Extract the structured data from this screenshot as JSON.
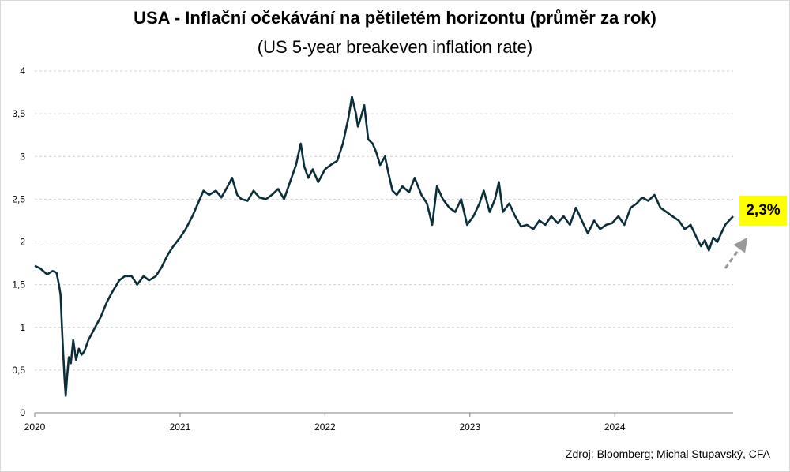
{
  "chart_data": {
    "type": "line",
    "title": "USA - Inflační očekávání na pětiletém horizontu (průměr za rok)",
    "subtitle": "(US 5-year breakeven inflation rate)",
    "xlabel": "",
    "ylabel": "",
    "x_ticks": [
      "2020",
      "2021",
      "2022",
      "2023",
      "2024"
    ],
    "y_ticks": [
      "0",
      "0,5",
      "1",
      "1,5",
      "2",
      "2,5",
      "3",
      "3,5",
      "4"
    ],
    "xlim": [
      "2020-01-01",
      "2024-10-25"
    ],
    "ylim": [
      0,
      4
    ],
    "grid": true,
    "line_color": "#0b2f3a",
    "series": [
      {
        "x": [
          "2020-01-01",
          "2020-01-15",
          "2020-02-01",
          "2020-02-15",
          "2020-02-25",
          "2020-03-01",
          "2020-03-06",
          "2020-03-09",
          "2020-03-12",
          "2020-03-16",
          "2020-03-19",
          "2020-03-23",
          "2020-03-27",
          "2020-04-01",
          "2020-04-07",
          "2020-04-14",
          "2020-04-21",
          "2020-04-28",
          "2020-05-05",
          "2020-05-15",
          "2020-06-01",
          "2020-06-15",
          "2020-07-01",
          "2020-07-15",
          "2020-08-01",
          "2020-08-15",
          "2020-09-01",
          "2020-09-15",
          "2020-10-01",
          "2020-10-15",
          "2020-11-01",
          "2020-11-15",
          "2020-12-01",
          "2020-12-15",
          "2021-01-01",
          "2021-01-15",
          "2021-02-01",
          "2021-02-15",
          "2021-03-01",
          "2021-03-15",
          "2021-04-01",
          "2021-04-15",
          "2021-05-01",
          "2021-05-12",
          "2021-05-25",
          "2021-06-05",
          "2021-06-20",
          "2021-07-05",
          "2021-07-20",
          "2021-08-05",
          "2021-08-20",
          "2021-09-05",
          "2021-09-20",
          "2021-10-05",
          "2021-10-20",
          "2021-11-01",
          "2021-11-10",
          "2021-11-20",
          "2021-12-01",
          "2021-12-15",
          "2022-01-01",
          "2022-01-15",
          "2022-02-01",
          "2022-02-15",
          "2022-03-01",
          "2022-03-10",
          "2022-03-20",
          "2022-03-25",
          "2022-04-01",
          "2022-04-10",
          "2022-04-20",
          "2022-05-01",
          "2022-05-10",
          "2022-05-20",
          "2022-06-01",
          "2022-06-10",
          "2022-06-20",
          "2022-07-01",
          "2022-07-15",
          "2022-08-01",
          "2022-08-15",
          "2022-09-01",
          "2022-09-15",
          "2022-09-28",
          "2022-10-10",
          "2022-10-25",
          "2022-11-10",
          "2022-11-25",
          "2022-12-10",
          "2022-12-25",
          "2023-01-10",
          "2023-01-25",
          "2023-02-05",
          "2023-02-20",
          "2023-03-05",
          "2023-03-15",
          "2023-03-25",
          "2023-04-10",
          "2023-04-25",
          "2023-05-10",
          "2023-05-25",
          "2023-06-10",
          "2023-06-25",
          "2023-07-10",
          "2023-07-25",
          "2023-08-10",
          "2023-08-25",
          "2023-09-10",
          "2023-09-25",
          "2023-10-10",
          "2023-10-25",
          "2023-11-10",
          "2023-11-25",
          "2023-12-10",
          "2023-12-25",
          "2024-01-10",
          "2024-01-25",
          "2024-02-10",
          "2024-02-25",
          "2024-03-10",
          "2024-03-25",
          "2024-04-10",
          "2024-04-25",
          "2024-05-10",
          "2024-05-25",
          "2024-06-10",
          "2024-06-25",
          "2024-07-10",
          "2024-07-25",
          "2024-08-05",
          "2024-08-15",
          "2024-08-25",
          "2024-09-05",
          "2024-09-15",
          "2024-09-25",
          "2024-10-05",
          "2024-10-15",
          "2024-10-25"
        ],
        "y": [
          1.72,
          1.69,
          1.62,
          1.66,
          1.64,
          1.52,
          1.38,
          1.05,
          0.75,
          0.4,
          0.2,
          0.45,
          0.65,
          0.58,
          0.85,
          0.62,
          0.75,
          0.68,
          0.72,
          0.85,
          1.0,
          1.12,
          1.3,
          1.42,
          1.55,
          1.6,
          1.6,
          1.5,
          1.6,
          1.55,
          1.6,
          1.7,
          1.85,
          1.95,
          2.05,
          2.15,
          2.3,
          2.45,
          2.6,
          2.55,
          2.6,
          2.52,
          2.65,
          2.75,
          2.55,
          2.5,
          2.48,
          2.6,
          2.52,
          2.5,
          2.55,
          2.62,
          2.5,
          2.7,
          2.9,
          3.15,
          2.88,
          2.75,
          2.85,
          2.7,
          2.85,
          2.9,
          2.95,
          3.15,
          3.45,
          3.7,
          3.5,
          3.35,
          3.45,
          3.6,
          3.2,
          3.15,
          3.05,
          2.9,
          3.0,
          2.8,
          2.6,
          2.55,
          2.65,
          2.58,
          2.75,
          2.55,
          2.45,
          2.2,
          2.65,
          2.5,
          2.4,
          2.35,
          2.5,
          2.2,
          2.3,
          2.45,
          2.6,
          2.35,
          2.5,
          2.7,
          2.35,
          2.45,
          2.3,
          2.18,
          2.2,
          2.15,
          2.25,
          2.2,
          2.3,
          2.22,
          2.3,
          2.2,
          2.4,
          2.25,
          2.1,
          2.25,
          2.15,
          2.2,
          2.22,
          2.3,
          2.2,
          2.4,
          2.45,
          2.52,
          2.48,
          2.55,
          2.4,
          2.35,
          2.3,
          2.25,
          2.15,
          2.2,
          2.05,
          1.95,
          2.02,
          1.9,
          2.05,
          2.0,
          2.1,
          2.2,
          2.25,
          2.3
        ]
      }
    ],
    "annotation": {
      "label": "2,3%",
      "color": "#ffff00",
      "arrow_color": "#999999"
    }
  },
  "source": "Zdroj: Bloomberg; Michal Stupavský, CFA"
}
